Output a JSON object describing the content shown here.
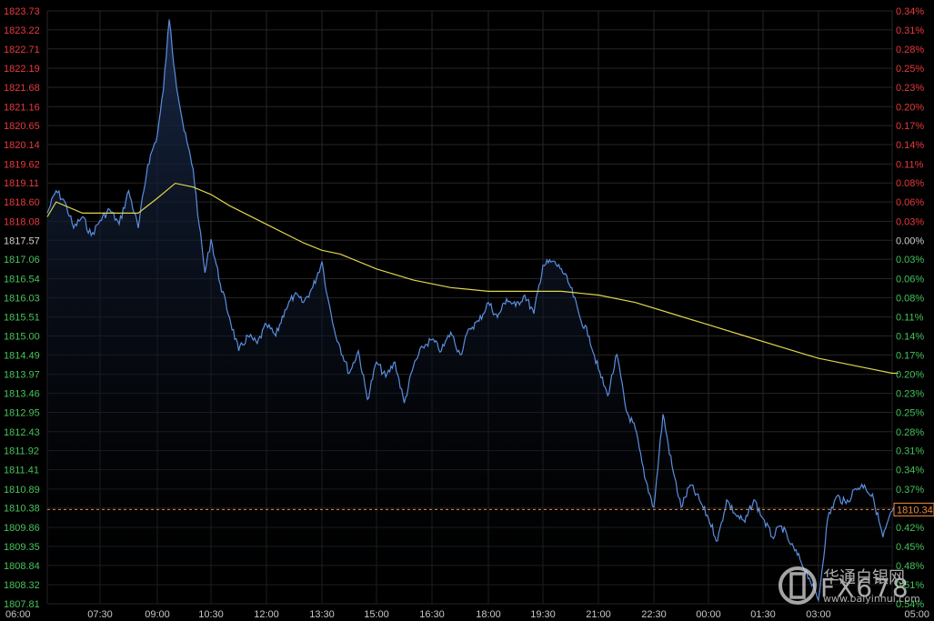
{
  "chart_data": {
    "type": "area",
    "reference_price": "1817.57",
    "last_price": "1810.34",
    "y_ticks": [
      "1823.73",
      "1823.22",
      "1822.71",
      "1822.19",
      "1821.68",
      "1821.16",
      "1820.65",
      "1820.14",
      "1819.62",
      "1819.11",
      "1818.60",
      "1818.08",
      "1817.57",
      "1817.06",
      "1816.54",
      "1816.03",
      "1815.51",
      "1815.00",
      "1814.49",
      "1813.97",
      "1813.46",
      "1812.95",
      "1812.43",
      "1811.92",
      "1811.41",
      "1810.89",
      "1810.38",
      "1809.86",
      "1809.35",
      "1808.84",
      "1808.32",
      "1807.81"
    ],
    "pct_ticks": [
      "0.34%",
      "0.31%",
      "0.28%",
      "0.25%",
      "0.23%",
      "0.20%",
      "0.17%",
      "0.14%",
      "0.11%",
      "0.08%",
      "0.06%",
      "0.03%",
      "0.00%",
      "0.03%",
      "0.06%",
      "0.08%",
      "0.11%",
      "0.14%",
      "0.17%",
      "0.20%",
      "0.23%",
      "0.25%",
      "0.28%",
      "0.31%",
      "0.34%",
      "0.37%",
      "0.40%",
      "0.42%",
      "0.45%",
      "0.48%",
      "0.51%",
      "0.54%"
    ],
    "x_ticks": [
      "06:00",
      "07:30",
      "09:00",
      "10:30",
      "12:00",
      "13:30",
      "15:00",
      "16:30",
      "18:00",
      "19:30",
      "21:00",
      "22:30",
      "00:00",
      "01:30",
      "03:00",
      "05:00"
    ],
    "price_series": {
      "name": "",
      "points": [
        [
          "06:00",
          1818.3
        ],
        [
          "06:15",
          1818.9
        ],
        [
          "06:30",
          1818.6
        ],
        [
          "06:45",
          1817.9
        ],
        [
          "07:00",
          1818.2
        ],
        [
          "07:15",
          1817.7
        ],
        [
          "07:30",
          1818.1
        ],
        [
          "07:45",
          1818.4
        ],
        [
          "08:00",
          1818.0
        ],
        [
          "08:15",
          1818.9
        ],
        [
          "08:30",
          1817.9
        ],
        [
          "08:45",
          1819.6
        ],
        [
          "09:00",
          1820.4
        ],
        [
          "09:10",
          1821.6
        ],
        [
          "09:20",
          1823.5
        ],
        [
          "09:30",
          1822.0
        ],
        [
          "09:45",
          1820.5
        ],
        [
          "10:00",
          1819.5
        ],
        [
          "10:10",
          1818.0
        ],
        [
          "10:20",
          1816.7
        ],
        [
          "10:30",
          1817.6
        ],
        [
          "10:45",
          1816.4
        ],
        [
          "11:00",
          1815.5
        ],
        [
          "11:15",
          1814.6
        ],
        [
          "11:30",
          1815.0
        ],
        [
          "11:45",
          1814.8
        ],
        [
          "12:00",
          1815.3
        ],
        [
          "12:15",
          1815.0
        ],
        [
          "12:30",
          1815.7
        ],
        [
          "12:45",
          1816.1
        ],
        [
          "13:00",
          1815.9
        ],
        [
          "13:15",
          1816.3
        ],
        [
          "13:30",
          1817.0
        ],
        [
          "13:40",
          1816.0
        ],
        [
          "13:50",
          1815.2
        ],
        [
          "14:00",
          1814.7
        ],
        [
          "14:15",
          1814.0
        ],
        [
          "14:30",
          1814.6
        ],
        [
          "14:45",
          1813.3
        ],
        [
          "15:00",
          1814.3
        ],
        [
          "15:15",
          1813.9
        ],
        [
          "15:30",
          1814.3
        ],
        [
          "15:45",
          1813.2
        ],
        [
          "16:00",
          1814.2
        ],
        [
          "16:15",
          1814.7
        ],
        [
          "16:30",
          1814.9
        ],
        [
          "16:45",
          1814.6
        ],
        [
          "17:00",
          1815.1
        ],
        [
          "17:15",
          1814.5
        ],
        [
          "17:30",
          1815.2
        ],
        [
          "17:45",
          1815.4
        ],
        [
          "18:00",
          1815.9
        ],
        [
          "18:15",
          1815.5
        ],
        [
          "18:30",
          1816.0
        ],
        [
          "18:45",
          1815.8
        ],
        [
          "19:00",
          1816.1
        ],
        [
          "19:15",
          1815.6
        ],
        [
          "19:30",
          1816.9
        ],
        [
          "19:45",
          1817.0
        ],
        [
          "20:00",
          1816.8
        ],
        [
          "20:15",
          1816.3
        ],
        [
          "20:30",
          1815.5
        ],
        [
          "20:45",
          1815.0
        ],
        [
          "21:00",
          1814.1
        ],
        [
          "21:15",
          1813.4
        ],
        [
          "21:30",
          1814.5
        ],
        [
          "21:45",
          1813.0
        ],
        [
          "22:00",
          1812.5
        ],
        [
          "22:15",
          1811.2
        ],
        [
          "22:30",
          1810.4
        ],
        [
          "22:45",
          1812.9
        ],
        [
          "23:00",
          1811.5
        ],
        [
          "23:15",
          1810.4
        ],
        [
          "23:30",
          1811.0
        ],
        [
          "23:45",
          1810.6
        ],
        [
          "00:00",
          1810.1
        ],
        [
          "00:15",
          1809.5
        ],
        [
          "00:30",
          1810.6
        ],
        [
          "00:45",
          1810.2
        ],
        [
          "01:00",
          1810.0
        ],
        [
          "01:15",
          1810.6
        ],
        [
          "01:30",
          1810.1
        ],
        [
          "01:45",
          1809.6
        ],
        [
          "02:00",
          1809.9
        ],
        [
          "02:15",
          1809.4
        ],
        [
          "02:30",
          1809.0
        ],
        [
          "02:45",
          1808.5
        ],
        [
          "03:00",
          1807.9
        ],
        [
          "03:15",
          1810.1
        ],
        [
          "03:30",
          1810.7
        ],
        [
          "03:45",
          1810.5
        ],
        [
          "04:00",
          1810.9
        ],
        [
          "04:15",
          1811.0
        ],
        [
          "04:30",
          1810.6
        ],
        [
          "04:45",
          1809.6
        ],
        [
          "05:00",
          1810.3
        ],
        [
          "05:10",
          1810.34
        ]
      ]
    },
    "ma_series": {
      "name": "",
      "points": [
        [
          "06:00",
          1818.2
        ],
        [
          "06:15",
          1818.6
        ],
        [
          "07:00",
          1818.3
        ],
        [
          "08:00",
          1818.3
        ],
        [
          "08:30",
          1818.3
        ],
        [
          "09:00",
          1818.7
        ],
        [
          "09:30",
          1819.1
        ],
        [
          "10:00",
          1819.0
        ],
        [
          "10:30",
          1818.8
        ],
        [
          "11:00",
          1818.5
        ],
        [
          "12:00",
          1818.0
        ],
        [
          "13:00",
          1817.5
        ],
        [
          "13:30",
          1817.3
        ],
        [
          "14:00",
          1817.2
        ],
        [
          "15:00",
          1816.8
        ],
        [
          "16:00",
          1816.5
        ],
        [
          "17:00",
          1816.3
        ],
        [
          "18:00",
          1816.2
        ],
        [
          "19:00",
          1816.2
        ],
        [
          "20:00",
          1816.2
        ],
        [
          "21:00",
          1816.1
        ],
        [
          "22:00",
          1815.9
        ],
        [
          "23:00",
          1815.6
        ],
        [
          "00:00",
          1815.3
        ],
        [
          "01:00",
          1815.0
        ],
        [
          "02:00",
          1814.7
        ],
        [
          "03:00",
          1814.4
        ],
        [
          "04:00",
          1814.2
        ],
        [
          "05:00",
          1814.0
        ],
        [
          "05:10",
          1814.0
        ]
      ]
    },
    "colors": {
      "background": "#000000",
      "grid": "#262626",
      "price_line": "#5b8ee0",
      "price_fill": "#1a2a4a",
      "ma_line": "#e0d64a",
      "up_label": "#e8393d",
      "neutral_label": "#d0d0d0",
      "down_label": "#45c45b",
      "x_label": "#c8c8c8",
      "last_price_line": "#f08a3c"
    },
    "grid": true
  },
  "watermark": {
    "brand": "FX678",
    "text": "华通白银网",
    "url": "www.baiyinhui.com"
  }
}
